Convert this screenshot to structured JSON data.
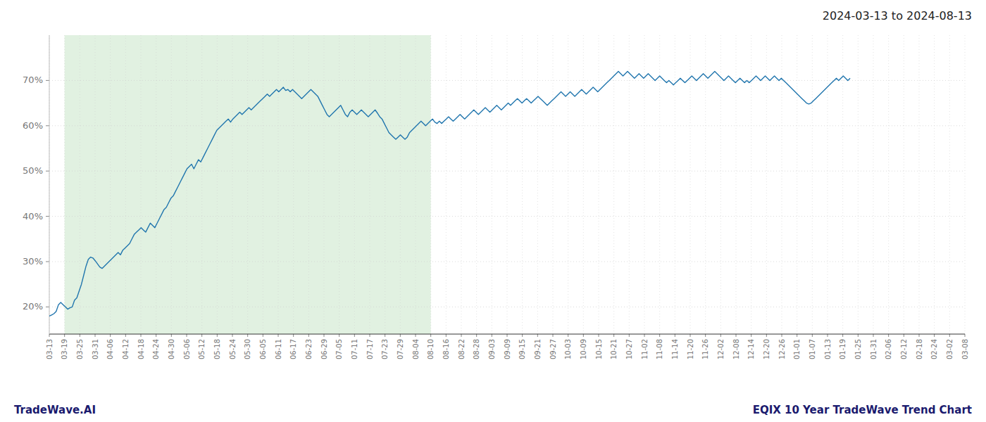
{
  "chart_data": {
    "type": "line",
    "title": "2024-03-13 to 2024-08-13",
    "annotations": [
      "TradeWave.AI",
      "EQIX 10 Year TradeWave Trend Chart"
    ],
    "color": "#2176ae",
    "grid": true,
    "band": {
      "start": 6.65,
      "end": 166.25,
      "color": "#c8e6c8"
    },
    "xlim": [
      0,
      399
    ],
    "xticks": [
      {
        "value": 0,
        "label": "03-13"
      },
      {
        "value": 6.65,
        "label": "03-19"
      },
      {
        "value": 13.3,
        "label": "03-25"
      },
      {
        "value": 19.95,
        "label": "03-31"
      },
      {
        "value": 26.6,
        "label": "04-06"
      },
      {
        "value": 33.25,
        "label": "04-12"
      },
      {
        "value": 39.9,
        "label": "04-18"
      },
      {
        "value": 46.55,
        "label": "04-24"
      },
      {
        "value": 53.2,
        "label": "04-30"
      },
      {
        "value": 59.85,
        "label": "05-06"
      },
      {
        "value": 66.5,
        "label": "05-12"
      },
      {
        "value": 73.15,
        "label": "05-18"
      },
      {
        "value": 79.8,
        "label": "05-24"
      },
      {
        "value": 86.45,
        "label": "05-30"
      },
      {
        "value": 93.1,
        "label": "06-05"
      },
      {
        "value": 99.75,
        "label": "06-11"
      },
      {
        "value": 106.4,
        "label": "06-17"
      },
      {
        "value": 113.05,
        "label": "06-23"
      },
      {
        "value": 119.7,
        "label": "06-29"
      },
      {
        "value": 126.35,
        "label": "07-05"
      },
      {
        "value": 133,
        "label": "07-11"
      },
      {
        "value": 139.65,
        "label": "07-17"
      },
      {
        "value": 146.3,
        "label": "07-23"
      },
      {
        "value": 152.95,
        "label": "07-29"
      },
      {
        "value": 159.6,
        "label": "08-04"
      },
      {
        "value": 166.25,
        "label": "08-10"
      },
      {
        "value": 172.9,
        "label": "08-16"
      },
      {
        "value": 179.55,
        "label": "08-22"
      },
      {
        "value": 186.2,
        "label": "08-28"
      },
      {
        "value": 192.85,
        "label": "09-03"
      },
      {
        "value": 199.5,
        "label": "09-09"
      },
      {
        "value": 206.15,
        "label": "09-15"
      },
      {
        "value": 212.8,
        "label": "09-21"
      },
      {
        "value": 219.45,
        "label": "09-27"
      },
      {
        "value": 226.1,
        "label": "10-03"
      },
      {
        "value": 232.75,
        "label": "10-09"
      },
      {
        "value": 239.4,
        "label": "10-15"
      },
      {
        "value": 246.05,
        "label": "10-21"
      },
      {
        "value": 252.7,
        "label": "10-27"
      },
      {
        "value": 259.35,
        "label": "11-02"
      },
      {
        "value": 266,
        "label": "11-08"
      },
      {
        "value": 272.65,
        "label": "11-14"
      },
      {
        "value": 279.3,
        "label": "11-20"
      },
      {
        "value": 285.95,
        "label": "11-26"
      },
      {
        "value": 292.6,
        "label": "12-02"
      },
      {
        "value": 299.25,
        "label": "12-08"
      },
      {
        "value": 305.9,
        "label": "12-14"
      },
      {
        "value": 312.55,
        "label": "12-20"
      },
      {
        "value": 319.2,
        "label": "12-26"
      },
      {
        "value": 325.85,
        "label": "01-01"
      },
      {
        "value": 332.5,
        "label": "01-07"
      },
      {
        "value": 339.15,
        "label": "01-13"
      },
      {
        "value": 345.8,
        "label": "01-19"
      },
      {
        "value": 352.45,
        "label": "01-25"
      },
      {
        "value": 359.1,
        "label": "01-31"
      },
      {
        "value": 365.75,
        "label": "02-06"
      },
      {
        "value": 372.4,
        "label": "02-12"
      },
      {
        "value": 379.05,
        "label": "02-18"
      },
      {
        "value": 385.7,
        "label": "02-24"
      },
      {
        "value": 392.35,
        "label": "03-02"
      },
      {
        "value": 399,
        "label": "03-08"
      }
    ],
    "ylim": [
      14,
      80
    ],
    "yticks": [
      {
        "value": 20,
        "label": "20%"
      },
      {
        "value": 30,
        "label": "30%"
      },
      {
        "value": 40,
        "label": "40%"
      },
      {
        "value": 50,
        "label": "50%"
      },
      {
        "value": 60,
        "label": "60%"
      },
      {
        "value": 70,
        "label": "70%"
      }
    ],
    "values": [
      18.0,
      18.2,
      18.5,
      19.0,
      20.5,
      21.0,
      20.5,
      20.0,
      19.5,
      19.8,
      20.0,
      21.5,
      22.0,
      23.5,
      25.0,
      27.0,
      29.0,
      30.5,
      31.0,
      30.8,
      30.2,
      29.5,
      28.8,
      28.5,
      29.0,
      29.5,
      30.0,
      30.5,
      31.0,
      31.5,
      32.0,
      31.5,
      32.5,
      33.0,
      33.5,
      34.0,
      35.0,
      36.0,
      36.5,
      37.0,
      37.5,
      37.0,
      36.5,
      37.5,
      38.5,
      38.0,
      37.5,
      38.5,
      39.5,
      40.5,
      41.5,
      42.0,
      43.0,
      44.0,
      44.5,
      45.5,
      46.5,
      47.5,
      48.5,
      49.5,
      50.5,
      51.0,
      51.5,
      50.5,
      51.5,
      52.5,
      52.0,
      53.0,
      54.0,
      55.0,
      56.0,
      57.0,
      58.0,
      59.0,
      59.5,
      60.0,
      60.5,
      61.0,
      61.5,
      60.8,
      61.5,
      62.0,
      62.5,
      63.0,
      62.5,
      63.0,
      63.5,
      64.0,
      63.5,
      64.0,
      64.5,
      65.0,
      65.5,
      66.0,
      66.5,
      67.0,
      66.5,
      67.0,
      67.5,
      68.0,
      67.5,
      68.0,
      68.5,
      67.8,
      68.0,
      67.5,
      68.0,
      67.5,
      67.0,
      66.5,
      66.0,
      66.5,
      67.0,
      67.5,
      68.0,
      67.5,
      67.0,
      66.5,
      65.5,
      64.5,
      63.5,
      62.5,
      62.0,
      62.5,
      63.0,
      63.5,
      64.0,
      64.5,
      63.5,
      62.5,
      62.0,
      63.0,
      63.5,
      63.0,
      62.5,
      63.0,
      63.5,
      63.0,
      62.5,
      62.0,
      62.5,
      63.0,
      63.5,
      62.8,
      62.0,
      61.5,
      60.5,
      59.5,
      58.5,
      58.0,
      57.5,
      57.0,
      57.5,
      58.0,
      57.5,
      57.0,
      57.5,
      58.5,
      59.0,
      59.5,
      60.0,
      60.5,
      61.0,
      60.5,
      60.0,
      60.5,
      61.0,
      61.5,
      60.8,
      60.5,
      61.0,
      60.5,
      61.0,
      61.5,
      62.0,
      61.5,
      61.0,
      61.5,
      62.0,
      62.5,
      62.0,
      61.5,
      62.0,
      62.5,
      63.0,
      63.5,
      63.0,
      62.5,
      63.0,
      63.5,
      64.0,
      63.5,
      63.0,
      63.5,
      64.0,
      64.5,
      64.0,
      63.5,
      64.0,
      64.5,
      65.0,
      64.5,
      65.0,
      65.5,
      66.0,
      65.5,
      65.0,
      65.5,
      66.0,
      65.5,
      65.0,
      65.5,
      66.0,
      66.5,
      66.0,
      65.5,
      65.0,
      64.5,
      65.0,
      65.5,
      66.0,
      66.5,
      67.0,
      67.5,
      67.0,
      66.5,
      67.0,
      67.5,
      67.0,
      66.5,
      67.0,
      67.5,
      68.0,
      67.5,
      67.0,
      67.5,
      68.0,
      68.5,
      68.0,
      67.5,
      68.0,
      68.5,
      69.0,
      69.5,
      70.0,
      70.5,
      71.0,
      71.5,
      72.0,
      71.5,
      71.0,
      71.5,
      72.0,
      71.5,
      71.0,
      70.5,
      71.0,
      71.5,
      71.0,
      70.5,
      71.0,
      71.5,
      71.0,
      70.5,
      70.0,
      70.5,
      71.0,
      70.5,
      70.0,
      69.5,
      70.0,
      69.5,
      69.0,
      69.5,
      70.0,
      70.5,
      70.0,
      69.5,
      70.0,
      70.5,
      71.0,
      70.5,
      70.0,
      70.5,
      71.0,
      71.5,
      71.0,
      70.5,
      71.0,
      71.5,
      72.0,
      71.5,
      71.0,
      70.5,
      70.0,
      70.5,
      71.0,
      70.5,
      70.0,
      69.5,
      70.0,
      70.5,
      70.0,
      69.5,
      70.0,
      69.5,
      70.0,
      70.5,
      71.0,
      70.5,
      70.0,
      70.5,
      71.0,
      70.5,
      70.0,
      70.5,
      71.0,
      70.5,
      70.0,
      70.5,
      70.0,
      69.5,
      69.0,
      68.5,
      68.0,
      67.5,
      67.0,
      66.5,
      66.0,
      65.5,
      65.0,
      64.8,
      65.0,
      65.5,
      66.0,
      66.5,
      67.0,
      67.5,
      68.0,
      68.5,
      69.0,
      69.5,
      70.0,
      70.5,
      70.0,
      70.5,
      71.0,
      70.5,
      70.0,
      70.5
    ]
  }
}
